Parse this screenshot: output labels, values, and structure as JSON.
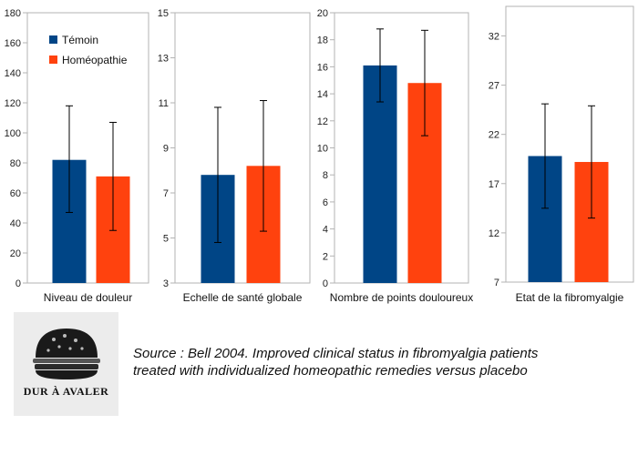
{
  "legend": {
    "items": [
      {
        "label": "Témoin",
        "color": "#004586"
      },
      {
        "label": "Homéopathie",
        "color": "#ff420e"
      }
    ],
    "placement": "top-left of first chart"
  },
  "chart_data": [
    {
      "type": "bar",
      "xlabel": "Niveau de douleur",
      "ylim": [
        0,
        180
      ],
      "yticks": [
        "0",
        "20",
        "40",
        "60",
        "80",
        "100",
        "120",
        "140",
        "160",
        "180"
      ],
      "grid": false,
      "series": [
        {
          "name": "Témoin",
          "color": "#004586",
          "values": [
            82
          ],
          "error_low": [
            47
          ],
          "error_high": [
            118
          ]
        },
        {
          "name": "Homéopathie",
          "color": "#ff420e",
          "values": [
            71
          ],
          "error_low": [
            35
          ],
          "error_high": [
            107
          ]
        }
      ]
    },
    {
      "type": "bar",
      "xlabel": "Echelle de santé globale",
      "ylim": [
        3,
        15
      ],
      "yticks": [
        "3",
        "5",
        "7",
        "9",
        "11",
        "13",
        "15"
      ],
      "grid": false,
      "series": [
        {
          "name": "Témoin",
          "color": "#004586",
          "values": [
            7.8
          ],
          "error_low": [
            4.8
          ],
          "error_high": [
            10.8
          ]
        },
        {
          "name": "Homéopathie",
          "color": "#ff420e",
          "values": [
            8.2
          ],
          "error_low": [
            5.3
          ],
          "error_high": [
            11.1
          ]
        }
      ]
    },
    {
      "type": "bar",
      "xlabel": "Nombre de points douloureux",
      "ylim": [
        0,
        20
      ],
      "yticks": [
        "0",
        "2",
        "4",
        "6",
        "8",
        "10",
        "12",
        "14",
        "16",
        "18",
        "20"
      ],
      "grid": false,
      "series": [
        {
          "name": "Témoin",
          "color": "#004586",
          "values": [
            16.1
          ],
          "error_low": [
            13.4
          ],
          "error_high": [
            18.8
          ]
        },
        {
          "name": "Homéopathie",
          "color": "#ff420e",
          "values": [
            14.8
          ],
          "error_low": [
            10.9
          ],
          "error_high": [
            18.7
          ]
        }
      ]
    },
    {
      "type": "bar",
      "xlabel": "Etat de la fibromyalgie",
      "ylim": [
        7,
        35
      ],
      "yticks": [
        "7",
        "12",
        "17",
        "22",
        "27",
        "32"
      ],
      "grid": false,
      "series": [
        {
          "name": "Témoin",
          "color": "#004586",
          "values": [
            19.8
          ],
          "error_low": [
            14.5
          ],
          "error_high": [
            25.1
          ]
        },
        {
          "name": "Homéopathie",
          "color": "#ff420e",
          "values": [
            19.2
          ],
          "error_low": [
            13.5
          ],
          "error_high": [
            24.9
          ]
        }
      ]
    }
  ],
  "logo": {
    "text": "DUR À AVALER",
    "icon": "burger-icon"
  },
  "source": {
    "line1": "Source : Bell 2004. Improved clinical status in fibromyalgia patients",
    "line2": "treated with individualized homeopathic remedies versus placebo"
  }
}
